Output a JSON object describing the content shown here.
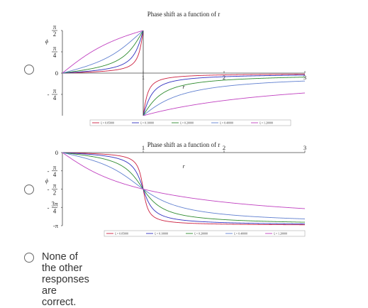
{
  "options": [
    {
      "chart_data": {
        "type": "line",
        "title": "Phase shift as a function of r",
        "ylabel": "ϕ",
        "xlabel": "r",
        "xlim": [
          0,
          3
        ],
        "ylim": [
          -1.5708,
          1.5708
        ],
        "y_tick_labels": [
          {
            "num": "π",
            "den": "2",
            "neg": false,
            "value": 1.5708
          },
          {
            "num": "π",
            "den": "4",
            "neg": false,
            "value": 0.7854
          },
          {
            "num": "",
            "den": "",
            "neg": false,
            "value": 0,
            "text": "0"
          },
          {
            "num": "π",
            "den": "4",
            "neg": true,
            "value": -0.7854
          }
        ],
        "x_tick_labels": [
          {
            "value": 1,
            "text": "1"
          },
          {
            "value": 2,
            "text": "2"
          },
          {
            "value": 3,
            "text": "3"
          }
        ],
        "series": [
          {
            "name": "ξ = 0.05000",
            "zeta": 0.05,
            "color": "#cc2040"
          },
          {
            "name": "ξ = 0.10000",
            "zeta": 0.1,
            "color": "#3030c0"
          },
          {
            "name": "ξ = 0.20000",
            "zeta": 0.2,
            "color": "#2e8b2e"
          },
          {
            "name": "ξ = 0.40000",
            "zeta": 0.4,
            "color": "#6080d0"
          },
          {
            "name": "ξ = 1.20000",
            "zeta": 1.2,
            "color": "#c040c0"
          }
        ],
        "variant": "arctan-jump"
      }
    },
    {
      "chart_data": {
        "type": "line",
        "title": "Phase shift as a function of r",
        "ylabel": "ϕ",
        "xlabel": "r",
        "xlim": [
          0,
          3
        ],
        "ylim": [
          -3.1416,
          0
        ],
        "y_tick_labels": [
          {
            "num": "",
            "den": "",
            "neg": false,
            "value": 0,
            "text": "0"
          },
          {
            "num": "π",
            "den": "4",
            "neg": true,
            "value": -0.7854
          },
          {
            "num": "π",
            "den": "2",
            "neg": true,
            "value": -1.5708
          },
          {
            "num": "3π",
            "den": "4",
            "neg": true,
            "value": -2.3562
          },
          {
            "num": "",
            "den": "",
            "neg": false,
            "value": -3.1416,
            "text": "-π"
          }
        ],
        "x_tick_labels": [
          {
            "value": 1,
            "text": "1"
          },
          {
            "value": 2,
            "text": "2"
          },
          {
            "value": 3,
            "text": "3"
          }
        ],
        "series": [
          {
            "name": "ξ = 0.05000",
            "zeta": 0.05,
            "color": "#cc2040"
          },
          {
            "name": "ξ = 0.10000",
            "zeta": 0.1,
            "color": "#3030c0"
          },
          {
            "name": "ξ = 0.20000",
            "zeta": 0.2,
            "color": "#2e8b2e"
          },
          {
            "name": "ξ = 0.40000",
            "zeta": 0.4,
            "color": "#6080d0"
          },
          {
            "name": "ξ = 1.20000",
            "zeta": 1.2,
            "color": "#c040c0"
          }
        ],
        "variant": "atan2-continuous"
      }
    }
  ],
  "none_option": {
    "label": "None of the other responses are correct."
  }
}
